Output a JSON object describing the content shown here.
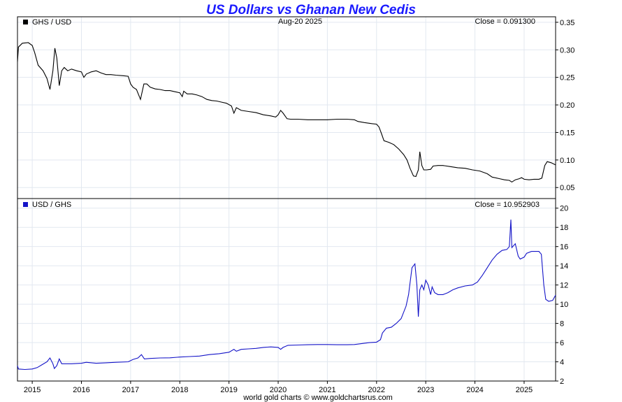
{
  "title": "US Dollars vs Ghanan New Cedis",
  "date_label": "Aug-20  2025",
  "footer": "world gold charts © www.goldchartsrus.com",
  "colors": {
    "title": "#1a1aff",
    "top_series": "#000000",
    "bottom_series": "#1414c8",
    "grid": "#e2e8f0"
  },
  "x_axis": {
    "range": [
      2014.7,
      2025.64
    ],
    "ticks": [
      {
        "label": "2015",
        "value": 2015
      },
      {
        "label": "2016",
        "value": 2016
      },
      {
        "label": "2017",
        "value": 2017
      },
      {
        "label": "2018",
        "value": 2018
      },
      {
        "label": "2019",
        "value": 2019
      },
      {
        "label": "2020",
        "value": 2020
      },
      {
        "label": "2021",
        "value": 2021
      },
      {
        "label": "2022",
        "value": 2022
      },
      {
        "label": "2023",
        "value": 2023
      },
      {
        "label": "2024",
        "value": 2024
      },
      {
        "label": "2025",
        "value": 2025
      }
    ]
  },
  "chart_data": [
    {
      "type": "line",
      "legend": "GHS / USD",
      "close_label": "Close = 0.091300",
      "ylim": [
        0.03,
        0.36
      ],
      "y_ticks": [
        {
          "label": "0.35",
          "value": 0.35
        },
        {
          "label": "0.30",
          "value": 0.3
        },
        {
          "label": "0.25",
          "value": 0.25
        },
        {
          "label": "0.20",
          "value": 0.2
        },
        {
          "label": "0.15",
          "value": 0.15
        },
        {
          "label": "0.10",
          "value": 0.1
        },
        {
          "label": "0.05",
          "value": 0.05
        }
      ],
      "points": [
        [
          2014.7,
          0.278
        ],
        [
          2014.72,
          0.305
        ],
        [
          2014.8,
          0.312
        ],
        [
          2014.92,
          0.313
        ],
        [
          2015.0,
          0.308
        ],
        [
          2015.05,
          0.295
        ],
        [
          2015.12,
          0.272
        ],
        [
          2015.22,
          0.262
        ],
        [
          2015.3,
          0.248
        ],
        [
          2015.36,
          0.228
        ],
        [
          2015.42,
          0.262
        ],
        [
          2015.46,
          0.303
        ],
        [
          2015.5,
          0.285
        ],
        [
          2015.55,
          0.235
        ],
        [
          2015.6,
          0.262
        ],
        [
          2015.65,
          0.268
        ],
        [
          2015.72,
          0.262
        ],
        [
          2015.8,
          0.265
        ],
        [
          2015.9,
          0.262
        ],
        [
          2016.0,
          0.26
        ],
        [
          2016.05,
          0.25
        ],
        [
          2016.1,
          0.256
        ],
        [
          2016.2,
          0.26
        ],
        [
          2016.3,
          0.262
        ],
        [
          2016.4,
          0.258
        ],
        [
          2016.5,
          0.255
        ],
        [
          2016.6,
          0.255
        ],
        [
          2016.7,
          0.254
        ],
        [
          2016.85,
          0.253
        ],
        [
          2016.95,
          0.252
        ],
        [
          2017.0,
          0.238
        ],
        [
          2017.05,
          0.232
        ],
        [
          2017.12,
          0.228
        ],
        [
          2017.2,
          0.21
        ],
        [
          2017.27,
          0.238
        ],
        [
          2017.33,
          0.238
        ],
        [
          2017.4,
          0.232
        ],
        [
          2017.5,
          0.229
        ],
        [
          2017.6,
          0.228
        ],
        [
          2017.7,
          0.226
        ],
        [
          2017.8,
          0.226
        ],
        [
          2017.9,
          0.224
        ],
        [
          2018.0,
          0.222
        ],
        [
          2018.05,
          0.215
        ],
        [
          2018.08,
          0.225
        ],
        [
          2018.15,
          0.22
        ],
        [
          2018.25,
          0.22
        ],
        [
          2018.35,
          0.218
        ],
        [
          2018.45,
          0.215
        ],
        [
          2018.55,
          0.21
        ],
        [
          2018.65,
          0.208
        ],
        [
          2018.75,
          0.207
        ],
        [
          2018.85,
          0.205
        ],
        [
          2018.95,
          0.203
        ],
        [
          2019.05,
          0.198
        ],
        [
          2019.1,
          0.185
        ],
        [
          2019.15,
          0.195
        ],
        [
          2019.25,
          0.19
        ],
        [
          2019.4,
          0.188
        ],
        [
          2019.55,
          0.186
        ],
        [
          2019.7,
          0.182
        ],
        [
          2019.85,
          0.18
        ],
        [
          2019.95,
          0.178
        ],
        [
          2020.0,
          0.182
        ],
        [
          2020.05,
          0.19
        ],
        [
          2020.1,
          0.185
        ],
        [
          2020.18,
          0.175
        ],
        [
          2020.25,
          0.174
        ],
        [
          2020.4,
          0.174
        ],
        [
          2020.6,
          0.173
        ],
        [
          2020.8,
          0.173
        ],
        [
          2021.0,
          0.173
        ],
        [
          2021.2,
          0.174
        ],
        [
          2021.4,
          0.174
        ],
        [
          2021.55,
          0.173
        ],
        [
          2021.62,
          0.17
        ],
        [
          2021.75,
          0.168
        ],
        [
          2021.9,
          0.166
        ],
        [
          2022.0,
          0.165
        ],
        [
          2022.05,
          0.16
        ],
        [
          2022.1,
          0.148
        ],
        [
          2022.15,
          0.135
        ],
        [
          2022.25,
          0.132
        ],
        [
          2022.35,
          0.128
        ],
        [
          2022.45,
          0.12
        ],
        [
          2022.55,
          0.11
        ],
        [
          2022.62,
          0.1
        ],
        [
          2022.68,
          0.085
        ],
        [
          2022.75,
          0.071
        ],
        [
          2022.8,
          0.07
        ],
        [
          2022.85,
          0.082
        ],
        [
          2022.88,
          0.115
        ],
        [
          2022.92,
          0.09
        ],
        [
          2022.96,
          0.082
        ],
        [
          2023.02,
          0.082
        ],
        [
          2023.1,
          0.083
        ],
        [
          2023.15,
          0.089
        ],
        [
          2023.25,
          0.09
        ],
        [
          2023.35,
          0.09
        ],
        [
          2023.5,
          0.088
        ],
        [
          2023.65,
          0.086
        ],
        [
          2023.8,
          0.085
        ],
        [
          2023.95,
          0.082
        ],
        [
          2024.1,
          0.08
        ],
        [
          2024.25,
          0.075
        ],
        [
          2024.35,
          0.069
        ],
        [
          2024.5,
          0.066
        ],
        [
          2024.6,
          0.064
        ],
        [
          2024.7,
          0.063
        ],
        [
          2024.75,
          0.06
        ],
        [
          2024.82,
          0.064
        ],
        [
          2024.9,
          0.066
        ],
        [
          2024.95,
          0.068
        ],
        [
          2025.0,
          0.065
        ],
        [
          2025.1,
          0.064
        ],
        [
          2025.2,
          0.065
        ],
        [
          2025.3,
          0.065
        ],
        [
          2025.36,
          0.067
        ],
        [
          2025.42,
          0.09
        ],
        [
          2025.47,
          0.097
        ],
        [
          2025.55,
          0.095
        ],
        [
          2025.64,
          0.091
        ]
      ]
    },
    {
      "type": "line",
      "legend": "USD / GHS",
      "close_label": "Close = 10.952903",
      "ylim": [
        2,
        21
      ],
      "y_ticks": [
        {
          "label": "20",
          "value": 20
        },
        {
          "label": "18",
          "value": 18
        },
        {
          "label": "16",
          "value": 16
        },
        {
          "label": "14",
          "value": 14
        },
        {
          "label": "12",
          "value": 12
        },
        {
          "label": "10",
          "value": 10
        },
        {
          "label": "8",
          "value": 8
        },
        {
          "label": "6",
          "value": 6
        },
        {
          "label": "4",
          "value": 4
        },
        {
          "label": "2",
          "value": 2
        }
      ],
      "points": [
        [
          2014.7,
          3.6
        ],
        [
          2014.72,
          3.25
        ],
        [
          2014.85,
          3.2
        ],
        [
          2015.0,
          3.25
        ],
        [
          2015.1,
          3.4
        ],
        [
          2015.2,
          3.7
        ],
        [
          2015.3,
          4.0
        ],
        [
          2015.36,
          4.4
        ],
        [
          2015.42,
          3.8
        ],
        [
          2015.45,
          3.3
        ],
        [
          2015.5,
          3.6
        ],
        [
          2015.55,
          4.3
        ],
        [
          2015.6,
          3.8
        ],
        [
          2015.7,
          3.8
        ],
        [
          2015.8,
          3.8
        ],
        [
          2016.0,
          3.85
        ],
        [
          2016.1,
          3.95
        ],
        [
          2016.3,
          3.85
        ],
        [
          2016.5,
          3.9
        ],
        [
          2016.7,
          3.95
        ],
        [
          2016.95,
          4.0
        ],
        [
          2017.05,
          4.25
        ],
        [
          2017.15,
          4.4
        ],
        [
          2017.22,
          4.75
        ],
        [
          2017.28,
          4.3
        ],
        [
          2017.4,
          4.35
        ],
        [
          2017.6,
          4.4
        ],
        [
          2017.8,
          4.42
        ],
        [
          2018.0,
          4.5
        ],
        [
          2018.2,
          4.55
        ],
        [
          2018.4,
          4.6
        ],
        [
          2018.6,
          4.75
        ],
        [
          2018.8,
          4.85
        ],
        [
          2019.0,
          5.0
        ],
        [
          2019.1,
          5.3
        ],
        [
          2019.15,
          5.1
        ],
        [
          2019.25,
          5.3
        ],
        [
          2019.4,
          5.35
        ],
        [
          2019.55,
          5.4
        ],
        [
          2019.7,
          5.5
        ],
        [
          2019.85,
          5.55
        ],
        [
          2020.0,
          5.5
        ],
        [
          2020.05,
          5.3
        ],
        [
          2020.1,
          5.5
        ],
        [
          2020.2,
          5.72
        ],
        [
          2020.4,
          5.75
        ],
        [
          2020.6,
          5.78
        ],
        [
          2020.8,
          5.8
        ],
        [
          2021.0,
          5.8
        ],
        [
          2021.2,
          5.78
        ],
        [
          2021.4,
          5.78
        ],
        [
          2021.55,
          5.8
        ],
        [
          2021.7,
          5.9
        ],
        [
          2021.85,
          6.0
        ],
        [
          2022.0,
          6.05
        ],
        [
          2022.08,
          6.3
        ],
        [
          2022.12,
          7.0
        ],
        [
          2022.2,
          7.5
        ],
        [
          2022.3,
          7.6
        ],
        [
          2022.4,
          8.0
        ],
        [
          2022.5,
          8.5
        ],
        [
          2022.6,
          9.8
        ],
        [
          2022.65,
          11.0
        ],
        [
          2022.72,
          13.8
        ],
        [
          2022.78,
          14.2
        ],
        [
          2022.82,
          12.0
        ],
        [
          2022.85,
          8.7
        ],
        [
          2022.88,
          11.5
        ],
        [
          2022.92,
          12.0
        ],
        [
          2022.96,
          11.5
        ],
        [
          2023.0,
          12.5
        ],
        [
          2023.05,
          12.0
        ],
        [
          2023.1,
          11.0
        ],
        [
          2023.13,
          11.8
        ],
        [
          2023.18,
          11.2
        ],
        [
          2023.25,
          11.0
        ],
        [
          2023.35,
          11.0
        ],
        [
          2023.45,
          11.2
        ],
        [
          2023.55,
          11.5
        ],
        [
          2023.65,
          11.7
        ],
        [
          2023.8,
          11.9
        ],
        [
          2023.95,
          12.0
        ],
        [
          2024.05,
          12.3
        ],
        [
          2024.15,
          13.0
        ],
        [
          2024.25,
          13.8
        ],
        [
          2024.35,
          14.6
        ],
        [
          2024.45,
          15.2
        ],
        [
          2024.55,
          15.6
        ],
        [
          2024.65,
          15.7
        ],
        [
          2024.7,
          16.0
        ],
        [
          2024.73,
          18.8
        ],
        [
          2024.75,
          15.9
        ],
        [
          2024.82,
          16.3
        ],
        [
          2024.88,
          15.0
        ],
        [
          2024.92,
          14.7
        ],
        [
          2025.0,
          14.9
        ],
        [
          2025.05,
          15.3
        ],
        [
          2025.15,
          15.5
        ],
        [
          2025.3,
          15.5
        ],
        [
          2025.35,
          15.2
        ],
        [
          2025.4,
          12.0
        ],
        [
          2025.44,
          10.5
        ],
        [
          2025.5,
          10.3
        ],
        [
          2025.58,
          10.4
        ],
        [
          2025.64,
          10.95
        ]
      ]
    }
  ]
}
